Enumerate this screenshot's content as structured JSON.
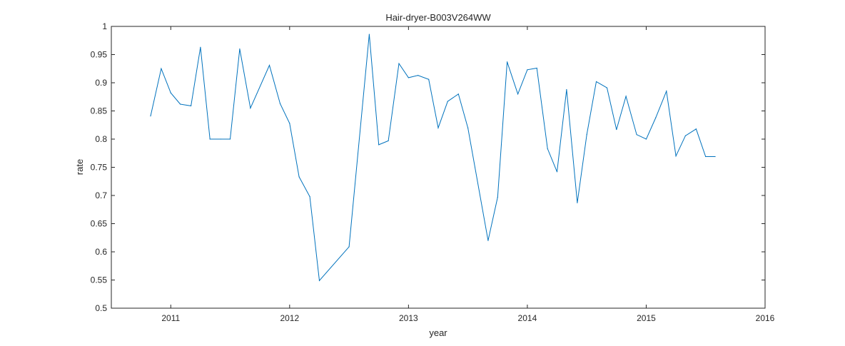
{
  "chart_data": {
    "type": "line",
    "title": "Hair-dryer-B003V264WW",
    "xlabel": "year",
    "ylabel": "rate",
    "xlim": [
      2010.5,
      2016
    ],
    "ylim": [
      0.5,
      1
    ],
    "xticks": [
      2011,
      2012,
      2013,
      2014,
      2015,
      2016
    ],
    "xtick_labels": [
      "2011",
      "2012",
      "2013",
      "2014",
      "2015",
      "2016"
    ],
    "yticks": [
      0.5,
      0.55,
      0.6,
      0.65,
      0.7,
      0.75,
      0.8,
      0.85,
      0.9,
      0.95,
      1
    ],
    "ytick_labels": [
      "0.5",
      "0.55",
      "0.6",
      "0.65",
      "0.7",
      "0.75",
      "0.8",
      "0.85",
      "0.9",
      "0.95",
      "1"
    ],
    "grid": false,
    "line_color": "#0072bd",
    "series": [
      {
        "x": [
          2010.83,
          2010.92,
          2011.0,
          2011.08,
          2011.17,
          2011.25,
          2011.33,
          2011.42,
          2011.5,
          2011.58,
          2011.67,
          2011.83,
          2011.92,
          2012.0,
          2012.08,
          2012.17,
          2012.25,
          2012.5,
          2012.67,
          2012.75,
          2012.83,
          2012.92,
          2013.0,
          2013.08,
          2013.17,
          2013.25,
          2013.33,
          2013.42,
          2013.5,
          2013.67,
          2013.75,
          2013.83,
          2013.92,
          2014.0,
          2014.08,
          2014.17,
          2014.25,
          2014.33,
          2014.42,
          2014.5,
          2014.58,
          2014.67,
          2014.75,
          2014.83,
          2014.92,
          2015.0,
          2015.08,
          2015.17,
          2015.25,
          2015.33,
          2015.42,
          2015.5,
          2015.58
        ],
        "y": [
          0.841,
          0.925,
          0.882,
          0.862,
          0.859,
          0.963,
          0.8,
          0.8,
          0.8,
          0.96,
          0.855,
          0.931,
          0.863,
          0.828,
          0.733,
          0.698,
          0.549,
          0.609,
          0.986,
          0.79,
          0.797,
          0.934,
          0.909,
          0.913,
          0.906,
          0.82,
          0.867,
          0.88,
          0.82,
          0.62,
          0.697,
          0.937,
          0.88,
          0.923,
          0.926,
          0.783,
          0.742,
          0.888,
          0.687,
          0.808,
          0.902,
          0.891,
          0.817,
          0.876,
          0.808,
          0.8,
          0.838,
          0.885,
          0.77,
          0.806,
          0.818,
          0.769,
          0.769
        ]
      }
    ]
  }
}
